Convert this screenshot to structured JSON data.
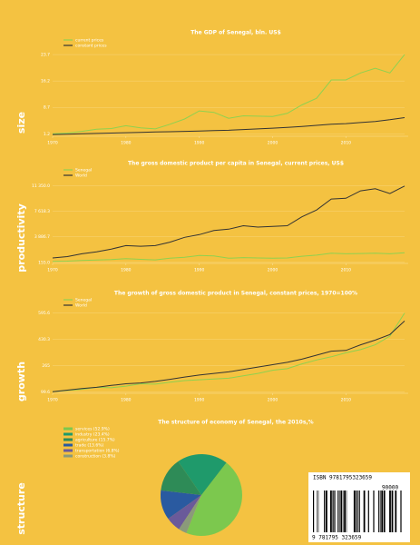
{
  "chart_data": [
    {
      "type": "line",
      "title": "The GDP of Senegal, bln. US$",
      "x": [
        1970,
        1972,
        1974,
        1976,
        1978,
        1980,
        1982,
        1984,
        1986,
        1988,
        1990,
        1992,
        1994,
        1996,
        1998,
        2000,
        2002,
        2004,
        2006,
        2008,
        2010,
        2012,
        2014,
        2016,
        2018
      ],
      "series": [
        {
          "name": "current prices",
          "color": "#8fd14f",
          "values": [
            1.2,
            1.4,
            1.9,
            2.5,
            2.7,
            3.5,
            2.9,
            2.6,
            3.9,
            5.4,
            7.7,
            7.3,
            5.6,
            6.3,
            6.2,
            6.1,
            7.0,
            9.4,
            11.3,
            16.5,
            16.5,
            18.5,
            19.8,
            18.5,
            23.7
          ]
        },
        {
          "name": "constant prices",
          "color": "#333333",
          "values": [
            1.0,
            1.1,
            1.2,
            1.3,
            1.4,
            1.5,
            1.6,
            1.7,
            1.8,
            1.9,
            2.0,
            2.1,
            2.2,
            2.4,
            2.6,
            2.8,
            3.0,
            3.3,
            3.6,
            3.9,
            4.1,
            4.4,
            4.7,
            5.2,
            5.8
          ]
        }
      ],
      "xlim": [
        1970,
        2018
      ],
      "xticks": [
        1970,
        1980,
        1990,
        2000,
        2010
      ],
      "ylim": [
        0.5,
        24.5
      ],
      "yticks": [
        1.2,
        8.7,
        16.2,
        23.7
      ]
    },
    {
      "type": "line",
      "title": "The gross domestic product per capita in Senegal, current prices, US$",
      "x": [
        1970,
        1972,
        1974,
        1976,
        1978,
        1980,
        1982,
        1984,
        1986,
        1988,
        1990,
        1992,
        1994,
        1996,
        1998,
        2000,
        2002,
        2004,
        2006,
        2008,
        2010,
        2012,
        2014,
        2016,
        2018
      ],
      "series": [
        {
          "name": "Senegal",
          "color": "#8fd14f",
          "values": [
            300,
            330,
            420,
            500,
            560,
            700,
            600,
            520,
            750,
            900,
            1150,
            1100,
            750,
            850,
            800,
            750,
            800,
            1050,
            1200,
            1500,
            1400,
            1450,
            1500,
            1400,
            1550
          ]
        },
        {
          "name": "World",
          "color": "#333333",
          "values": [
            800,
            1000,
            1400,
            1700,
            2100,
            2600,
            2500,
            2600,
            3100,
            3800,
            4200,
            4800,
            5000,
            5500,
            5300,
            5400,
            5500,
            6800,
            7800,
            9400,
            9500,
            10600,
            10900,
            10200,
            11300
          ]
        }
      ],
      "xlim": [
        1970,
        2018
      ],
      "xticks": [
        1970,
        1980,
        1990,
        2000,
        2010
      ],
      "ylim": [
        0,
        11800
      ],
      "yticks": [
        {
          "value": 155,
          "label": "155.0"
        },
        {
          "value": 3886.7,
          "label": "3 886.7"
        },
        {
          "value": 7618.3,
          "label": "7 618.3"
        },
        {
          "value": 11350,
          "label": "11 350.0"
        }
      ]
    },
    {
      "type": "line",
      "title": "The growth of gross domestic product in Senegal, constant prices, 1970=100%",
      "x": [
        1970,
        1972,
        1974,
        1976,
        1978,
        1980,
        1982,
        1984,
        1986,
        1988,
        1990,
        1992,
        1994,
        1996,
        1998,
        2000,
        2002,
        2004,
        2006,
        2008,
        2010,
        2012,
        2014,
        2016,
        2018
      ],
      "series": [
        {
          "name": "Senegal",
          "color": "#8fd14f",
          "values": [
            100,
            108,
            115,
            128,
            125,
            135,
            150,
            148,
            160,
            170,
            175,
            180,
            185,
            200,
            215,
            235,
            245,
            275,
            300,
            320,
            345,
            365,
            395,
            450,
            595
          ]
        },
        {
          "name": "World",
          "color": "#333333",
          "values": [
            100,
            110,
            120,
            128,
            140,
            150,
            155,
            165,
            178,
            192,
            205,
            215,
            225,
            240,
            255,
            270,
            285,
            305,
            330,
            355,
            360,
            395,
            425,
            460,
            545
          ]
        }
      ],
      "xlim": [
        1970,
        2018
      ],
      "xticks": [
        1970,
        1980,
        1990,
        2000,
        2010
      ],
      "ylim": [
        90,
        610
      ],
      "yticks": [
        99.6,
        265,
        430.3,
        595.6
      ]
    },
    {
      "type": "pie",
      "title": "The structure of economy of Senegal, the 2010s,%",
      "categories": [
        "services",
        "industry",
        "agriculture",
        "trade",
        "transportation",
        "construction"
      ],
      "values": [
        52.9,
        23.4,
        15.7,
        13.6,
        6.8,
        3.8
      ],
      "legend_labels": [
        "services (52.9%)",
        "industry (23.4%)",
        "agriculture (15.7%)",
        "trade (13.6%)",
        "transportation (6.8%)",
        "construction (3.8%)"
      ],
      "colors": [
        "#7cc84e",
        "#1f9a6b",
        "#2e8b57",
        "#2a5aa0",
        "#6a5a9a",
        "#8a9a7a"
      ]
    }
  ],
  "sections": [
    "size",
    "productivity",
    "growth",
    "structure"
  ],
  "barcode": {
    "isbn": "ISBN 9781795323659",
    "price": "90000",
    "digits": "9 781795 323659"
  }
}
